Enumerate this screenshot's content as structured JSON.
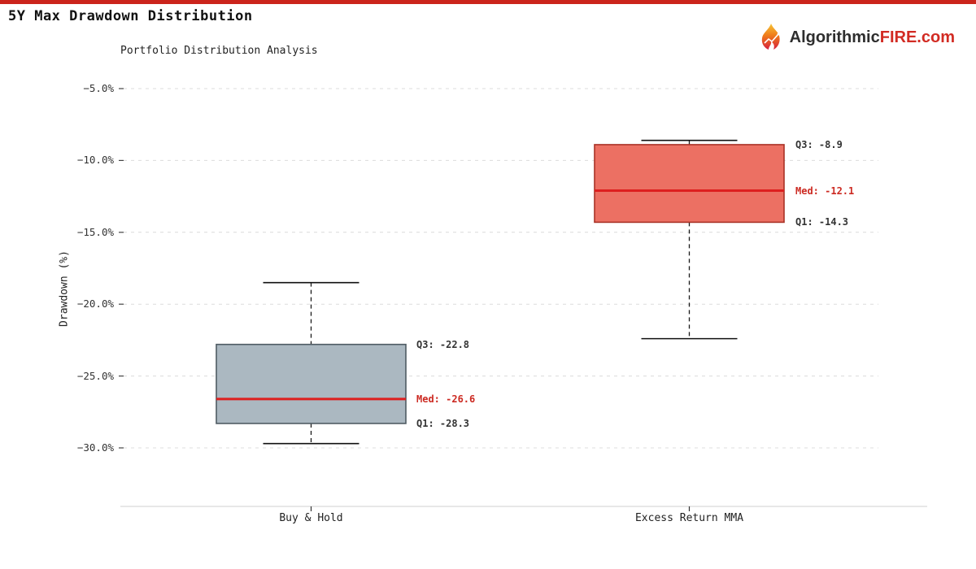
{
  "page": {
    "background": "#ffffff",
    "top_bar_color": "#cb241c"
  },
  "header": {
    "title": "5Y Max Drawdown Distribution",
    "brand": {
      "icon": "flame-icon",
      "text_dark": "Algorithmic",
      "text_red": "FIRE.com",
      "dark_color": "#2e2e2e",
      "red_color": "#d22b23"
    }
  },
  "chart_data": {
    "type": "boxplot",
    "title": "Portfolio Distribution Analysis",
    "ylabel": "Drawdown (%)",
    "ylim": [
      -32.5,
      -3.8
    ],
    "grid": "horizontal dashed",
    "yticks": [
      {
        "value": -5,
        "label": "−5.0%"
      },
      {
        "value": -10,
        "label": "−10.0%"
      },
      {
        "value": -15,
        "label": "−15.0%"
      },
      {
        "value": -20,
        "label": "−20.0%"
      },
      {
        "value": -25,
        "label": "−25.0%"
      },
      {
        "value": -30,
        "label": "−30.0%"
      }
    ],
    "categories": [
      "Buy & Hold",
      "Excess Return MMA"
    ],
    "series": [
      {
        "name": "Buy & Hold",
        "whisker_high": -18.5,
        "q3": -22.8,
        "median": -26.6,
        "q1": -28.3,
        "whisker_low": -29.7,
        "box_fill": "#abb8c1",
        "box_border": "#4f5b63",
        "labels": {
          "q3": "Q3: -22.8",
          "med": "Med: -26.6",
          "q1": "Q1: -28.3"
        }
      },
      {
        "name": "Excess Return MMA",
        "whisker_high": -8.6,
        "q3": -8.9,
        "median": -12.1,
        "q1": -14.3,
        "whisker_low": -22.4,
        "box_fill": "#ec7063",
        "box_border": "#a93226",
        "labels": {
          "q3": "Q3: -8.9",
          "med": "Med: -12.1",
          "q1": "Q1: -14.3"
        }
      }
    ],
    "colors": {
      "median_line": "#dd1f1f",
      "median_label": "#cc2a22",
      "annotation_text": "#333333",
      "grid": "#dcdcdc",
      "axis_line": "#cfcfcf",
      "axis_text": "#333333",
      "whisker": "#1a1a1a"
    }
  }
}
